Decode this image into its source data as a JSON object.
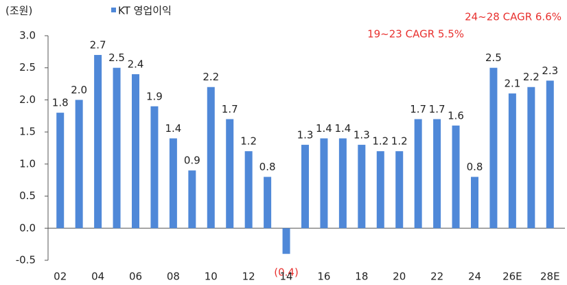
{
  "chart_data": {
    "type": "bar",
    "unit_label": "(조원)",
    "annotations": [
      "24~28 CAGR 6.6%",
      "19~23 CAGR 5.5%"
    ],
    "categories": [
      "02",
      null,
      "04",
      null,
      "06",
      null,
      "08",
      null,
      "10",
      null,
      "12",
      null,
      "14",
      null,
      "16",
      null,
      "18",
      null,
      "20",
      null,
      "22",
      null,
      "24",
      null,
      "26E",
      null,
      "28E"
    ],
    "series": [
      {
        "name": "KT 영업이익",
        "color": "#4f88d8",
        "values": [
          1.8,
          2.0,
          2.7,
          2.5,
          2.4,
          1.9,
          1.4,
          0.9,
          2.2,
          1.7,
          1.2,
          0.8,
          -0.4,
          1.3,
          1.4,
          1.4,
          1.3,
          1.2,
          1.2,
          1.7,
          1.7,
          1.6,
          0.8,
          2.5,
          2.1,
          2.2,
          2.3
        ],
        "value_labels": [
          "1.8",
          "2.0",
          "2.7",
          "2.5",
          "2.4",
          "1.9",
          "1.4",
          "0.9",
          "2.2",
          "1.7",
          "1.2",
          "0.8",
          "(0.4)",
          "1.3",
          "1.4",
          "1.4",
          "1.3",
          "1.2",
          "1.2",
          "1.7",
          "1.7",
          "1.6",
          "0.8",
          "2.5",
          "2.1",
          "2.2",
          "2.3"
        ]
      }
    ],
    "ylim": [
      -0.5,
      3.0
    ],
    "yticks": [
      {
        "value": -0.5,
        "label": "-0.5"
      },
      {
        "value": 0,
        "label": "0.0"
      },
      {
        "value": 0.5,
        "label": "0.5"
      },
      {
        "value": 1,
        "label": "1.0"
      },
      {
        "value": 1.5,
        "label": "1.5"
      },
      {
        "value": 2,
        "label": "2.0"
      },
      {
        "value": 2.5,
        "label": "2.5"
      },
      {
        "value": 3,
        "label": "3.0"
      }
    ]
  }
}
